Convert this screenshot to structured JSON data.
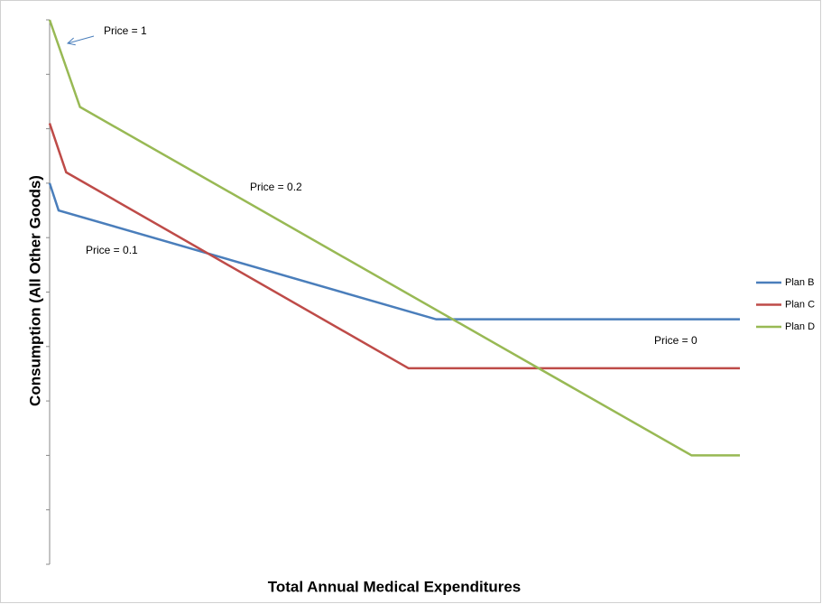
{
  "chart_data": {
    "type": "line",
    "xlabel": "Total Annual Medical Expenditures",
    "ylabel": "Consumption  (All Other Goods)",
    "xlim": [
      0,
      100
    ],
    "ylim": [
      0,
      10
    ],
    "yticks": [
      0,
      1,
      2,
      3,
      4,
      5,
      6,
      7,
      8,
      9,
      10
    ],
    "series": [
      {
        "name": "Plan B",
        "color": "#4a7ebb",
        "x": [
          0,
          1.3,
          56,
          100
        ],
        "values": [
          7,
          6.5,
          4.5,
          4.5
        ]
      },
      {
        "name": "Plan C",
        "color": "#be4b48",
        "x": [
          0,
          2.4,
          52,
          100
        ],
        "values": [
          8.1,
          7.2,
          3.6,
          3.6
        ]
      },
      {
        "name": "Plan D",
        "color": "#98b954",
        "x": [
          0,
          4.4,
          93,
          100
        ],
        "values": [
          10,
          8.4,
          2,
          2
        ]
      }
    ],
    "annotations": [
      "Price = 1",
      "Price = 0.2",
      "Price = 0.1",
      "Price = 0"
    ],
    "legend": "right"
  }
}
